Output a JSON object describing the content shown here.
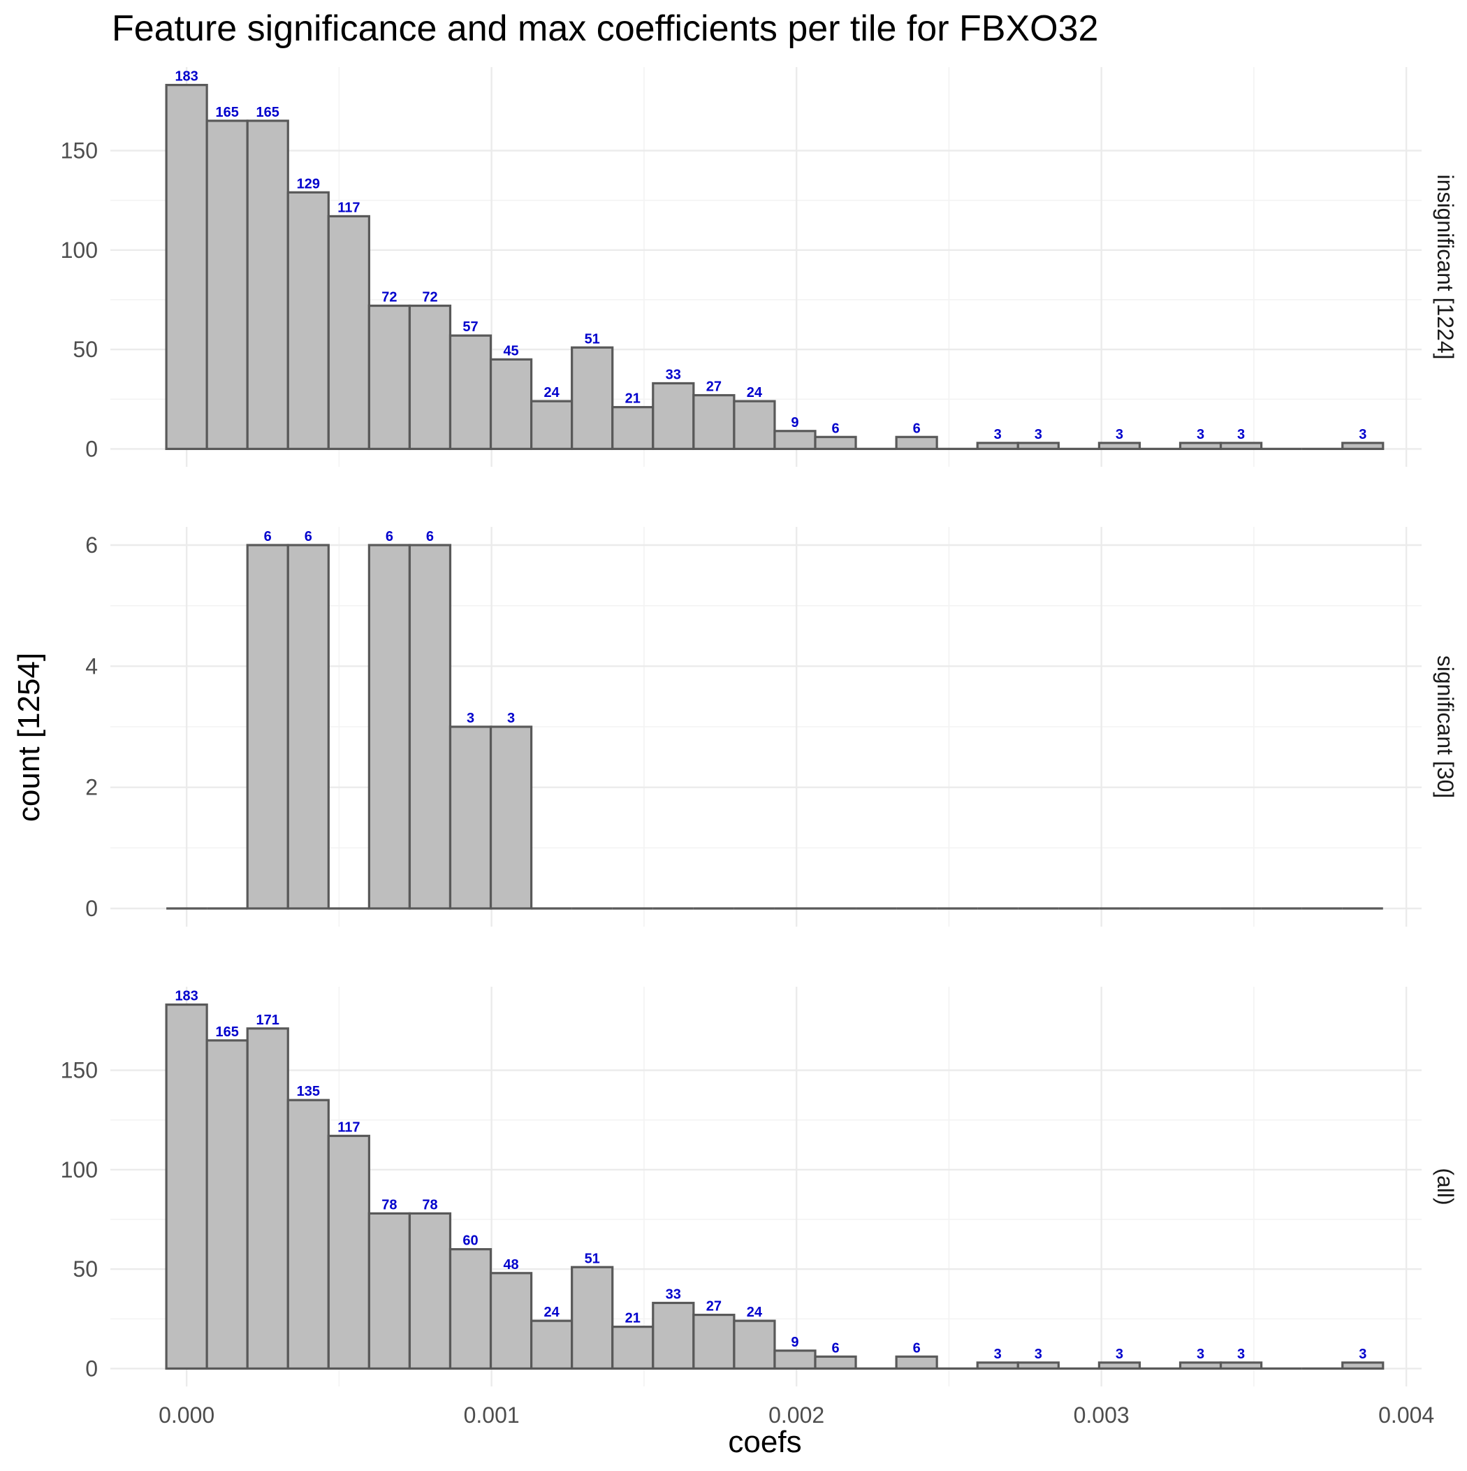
{
  "chart_data": {
    "type": "bar",
    "title": "Feature significance and max coefficients per tile for FBXO32",
    "xlabel": "coefs",
    "ylabel": "count [1254]",
    "grid": true,
    "legend": "none",
    "bar_fill": "#bebebe",
    "bar_outline": "#595959",
    "label_color": "#0000cc",
    "xlim": [
      -0.00025,
      0.00405
    ],
    "bins": {
      "x_start": -6.65e-05,
      "width": 0.000133,
      "count": 30
    },
    "x_ticks": [
      {
        "value": 0.0,
        "label": "0.000"
      },
      {
        "value": 0.001,
        "label": "0.001"
      },
      {
        "value": 0.002,
        "label": "0.002"
      },
      {
        "value": 0.003,
        "label": "0.003"
      },
      {
        "value": 0.004,
        "label": "0.004"
      }
    ],
    "panels": [
      {
        "strip": "insignificant [1224]",
        "ylim": [
          -9,
          192
        ],
        "y_ticks": [
          {
            "value": 0,
            "label": "0"
          },
          {
            "value": 50,
            "label": "50"
          },
          {
            "value": 100,
            "label": "100"
          },
          {
            "value": 150,
            "label": "150"
          }
        ],
        "counts": [
          183,
          165,
          165,
          129,
          117,
          72,
          72,
          57,
          45,
          24,
          51,
          21,
          33,
          27,
          24,
          9,
          6,
          0,
          6,
          0,
          3,
          3,
          0,
          3,
          0,
          3,
          3,
          0,
          0,
          3
        ],
        "count_labels": [
          "183",
          "165",
          "165",
          "129",
          "117",
          "72",
          "72",
          "57",
          "45",
          "24",
          "51",
          "21",
          "33",
          "27",
          "24",
          "9",
          "6",
          "",
          "6",
          "",
          "3",
          "3",
          "",
          "3",
          "",
          "3",
          "3",
          "",
          "",
          "3"
        ]
      },
      {
        "strip": "significant [30]",
        "ylim": [
          -0.3,
          6.3
        ],
        "y_ticks": [
          {
            "value": 0,
            "label": "0"
          },
          {
            "value": 2,
            "label": "2"
          },
          {
            "value": 4,
            "label": "4"
          },
          {
            "value": 6,
            "label": "6"
          }
        ],
        "counts": [
          0,
          0,
          6,
          6,
          0,
          6,
          6,
          3,
          3,
          0,
          0,
          0,
          0,
          0,
          0,
          0,
          0,
          0,
          0,
          0,
          0,
          0,
          0,
          0,
          0,
          0,
          0,
          0,
          0,
          0
        ],
        "count_labels": [
          "",
          "",
          "6",
          "6",
          "",
          "6",
          "6",
          "3",
          "3",
          "",
          "",
          "",
          "",
          "",
          "",
          "",
          "",
          "",
          "",
          "",
          "",
          "",
          "",
          "",
          "",
          "",
          "",
          "",
          "",
          ""
        ]
      },
      {
        "strip": "(all)",
        "ylim": [
          -9,
          192
        ],
        "y_ticks": [
          {
            "value": 0,
            "label": "0"
          },
          {
            "value": 50,
            "label": "50"
          },
          {
            "value": 100,
            "label": "100"
          },
          {
            "value": 150,
            "label": "150"
          }
        ],
        "counts": [
          183,
          165,
          171,
          135,
          117,
          78,
          78,
          60,
          48,
          24,
          51,
          21,
          33,
          27,
          24,
          9,
          6,
          0,
          6,
          0,
          3,
          3,
          0,
          3,
          0,
          3,
          3,
          0,
          0,
          3
        ],
        "count_labels": [
          "183",
          "165",
          "171",
          "135",
          "117",
          "78",
          "78",
          "60",
          "48",
          "24",
          "51",
          "21",
          "33",
          "27",
          "24",
          "9",
          "6",
          "",
          "6",
          "",
          "3",
          "3",
          "",
          "3",
          "",
          "3",
          "3",
          "",
          "",
          "3"
        ]
      }
    ]
  }
}
